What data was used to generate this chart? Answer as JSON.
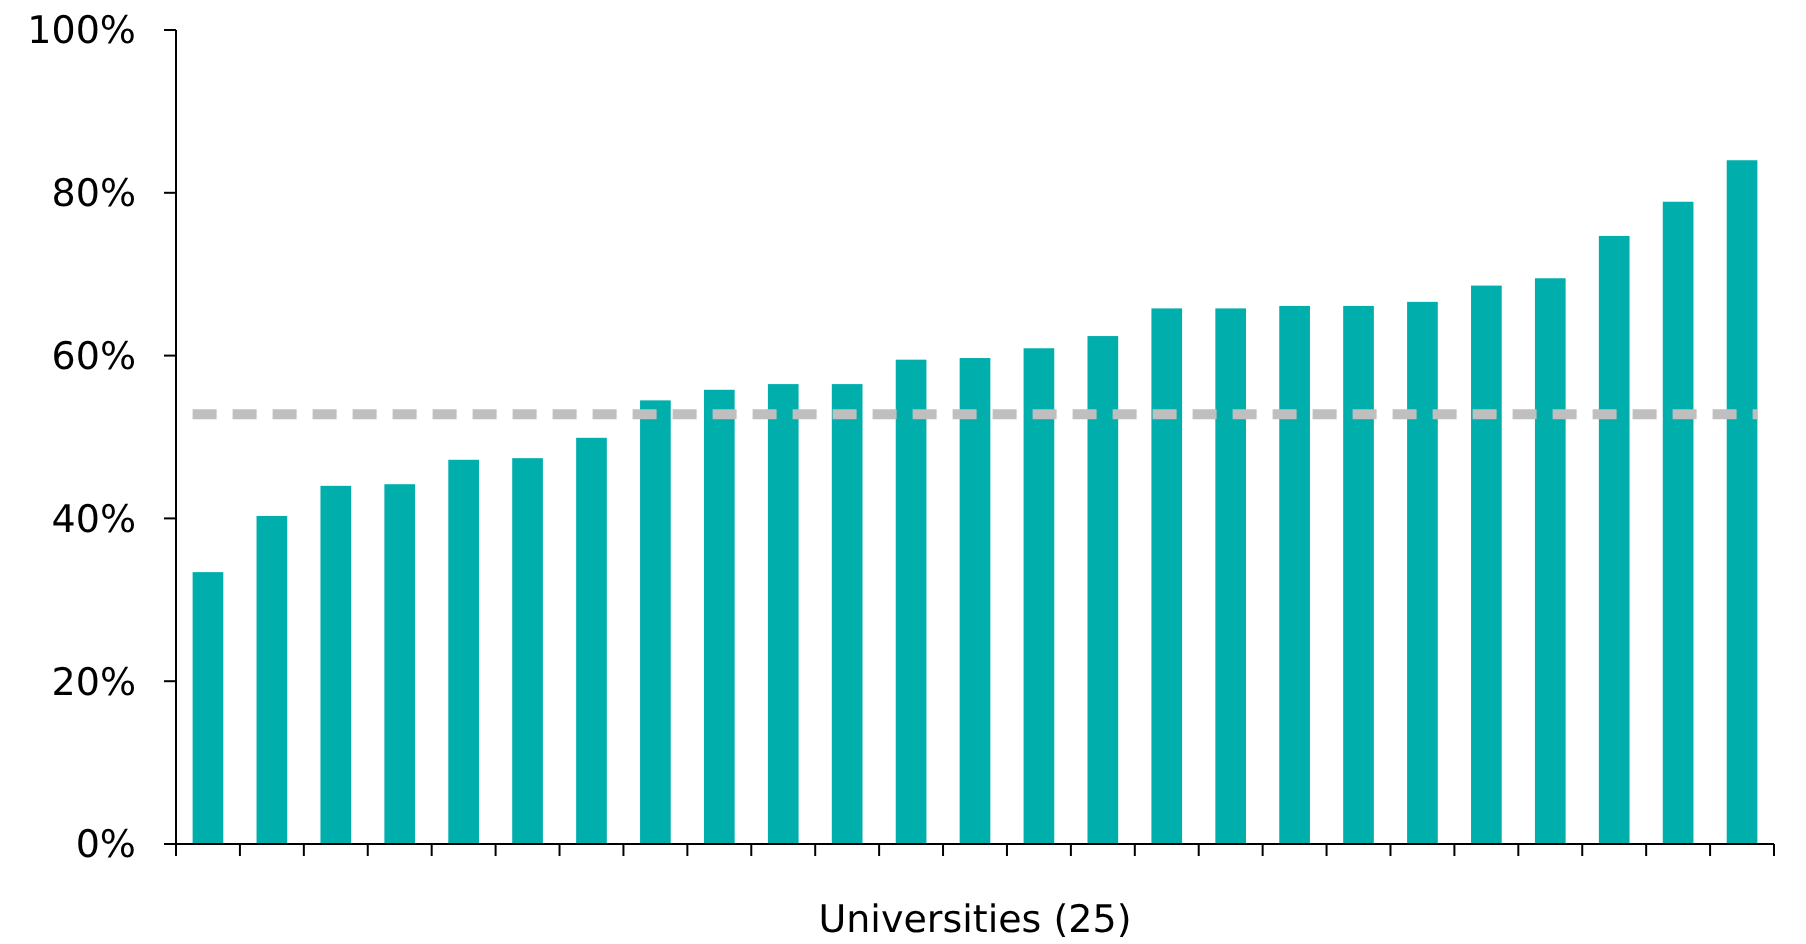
{
  "chart_data": {
    "type": "bar",
    "xlabel": "Universities (25)",
    "categories": [
      null,
      null,
      null,
      null,
      null,
      null,
      null,
      null,
      null,
      null,
      null,
      null,
      null,
      null,
      null,
      null,
      null,
      null,
      null,
      null,
      null,
      null,
      null,
      null,
      null
    ],
    "values": [
      33.4,
      40.3,
      44.0,
      44.2,
      47.2,
      47.4,
      49.9,
      54.5,
      55.8,
      56.5,
      56.5,
      59.5,
      59.7,
      60.9,
      62.4,
      65.8,
      65.8,
      66.1,
      66.1,
      66.6,
      68.6,
      69.5,
      74.7,
      78.9,
      84.0
    ],
    "color": "#00aeac",
    "ylim": [
      0,
      100
    ],
    "yticks": [
      {
        "value": 0,
        "label": "0%"
      },
      {
        "value": 20,
        "label": "20%"
      },
      {
        "value": 40,
        "label": "40%"
      },
      {
        "value": 60,
        "label": "60%"
      },
      {
        "value": 80,
        "label": "80%"
      },
      {
        "value": 100,
        "label": "100%"
      }
    ],
    "ref_lines": [
      {
        "axis": "y",
        "value": 52.8,
        "color": "#bfbfbf",
        "line_style": "dashed"
      }
    ],
    "tick_labels": "y"
  }
}
